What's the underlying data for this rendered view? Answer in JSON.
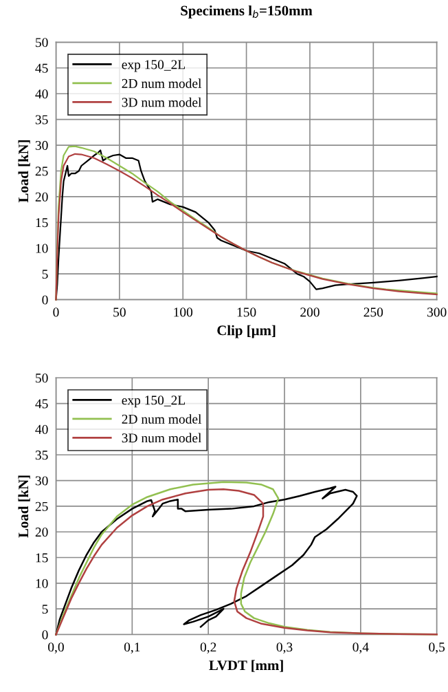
{
  "chart_data": [
    {
      "type": "line",
      "title": "Specimens l$_{b}$=150mm",
      "xlabel": "Clip [µm]",
      "ylabel": "Load [kN]",
      "xlim": [
        0,
        300
      ],
      "xticks": [
        0,
        50,
        100,
        150,
        200,
        250,
        300
      ],
      "ylim": [
        0,
        50
      ],
      "yticks": [
        0,
        5,
        10,
        15,
        20,
        25,
        30,
        35,
        40,
        45,
        50
      ],
      "grid": true,
      "legend": "top left",
      "marker": "none",
      "line_style": "solid",
      "series": [
        {
          "name": "exp 150_2L",
          "color": "#000000",
          "x": [
            0,
            1,
            2,
            3,
            4,
            5,
            6,
            8,
            9,
            10,
            12,
            15,
            18,
            20,
            25,
            30,
            33,
            35,
            37,
            40,
            45,
            50,
            55,
            60,
            65,
            67,
            70,
            75,
            76,
            80,
            85,
            90,
            100,
            105,
            110,
            115,
            120,
            125,
            127,
            130,
            140,
            150,
            160,
            165,
            170,
            180,
            185,
            190,
            195,
            200,
            205,
            210,
            220,
            230,
            250,
            270,
            290,
            300
          ],
          "values": [
            0,
            3,
            8,
            12,
            16,
            20,
            23,
            25,
            26,
            24,
            24.5,
            24.5,
            25,
            26,
            27,
            28,
            28.5,
            29,
            27,
            27.5,
            28,
            28.2,
            27.5,
            27.5,
            27,
            25,
            23,
            21,
            19,
            19.5,
            19,
            18.5,
            18,
            17.5,
            17,
            16,
            15,
            13.5,
            12,
            11.5,
            10.5,
            9.5,
            9,
            8.5,
            8,
            7,
            6,
            5,
            4.5,
            3.5,
            2,
            2.2,
            2.8,
            3,
            3.3,
            3.7,
            4.2,
            4.5
          ]
        },
        {
          "name": "2D num model",
          "color": "#92c050",
          "x": [
            0,
            1,
            2,
            4,
            6,
            10,
            15,
            20,
            30,
            40,
            50,
            60,
            70,
            80,
            90,
            100,
            110,
            120,
            130,
            140,
            150,
            160,
            170,
            180,
            190,
            200,
            210,
            220,
            230,
            240,
            250,
            260,
            270,
            280,
            290,
            300
          ],
          "values": [
            0,
            10,
            18,
            25,
            28,
            29.7,
            29.8,
            29.5,
            28.8,
            27.5,
            26,
            24.5,
            22.7,
            21,
            19,
            17.3,
            15.6,
            14,
            12.2,
            10.8,
            9.5,
            8.3,
            7.2,
            6.3,
            5.5,
            4.8,
            4.1,
            3.6,
            3.1,
            2.7,
            2.3,
            2,
            1.8,
            1.6,
            1.4,
            1.2
          ]
        },
        {
          "name": "3D num model",
          "color": "#b04040",
          "x": [
            0,
            1,
            2,
            4,
            6,
            10,
            15,
            20,
            30,
            40,
            50,
            60,
            70,
            80,
            90,
            100,
            110,
            120,
            130,
            140,
            150,
            160,
            170,
            180,
            190,
            200,
            210,
            220,
            230,
            240,
            250,
            260,
            270,
            280,
            290,
            300
          ],
          "values": [
            0,
            9,
            16,
            23,
            26,
            27.8,
            28.3,
            28.2,
            27.5,
            26.3,
            25,
            23.6,
            22,
            20.3,
            18.7,
            17,
            15.4,
            13.8,
            12.2,
            10.8,
            9.5,
            8.3,
            7.2,
            6.3,
            5.4,
            4.7,
            4.0,
            3.5,
            3,
            2.6,
            2.2,
            1.9,
            1.6,
            1.4,
            1.2,
            1.0
          ]
        }
      ]
    },
    {
      "type": "line",
      "xlabel": "LVDT [mm]",
      "ylabel": "Load [kN]",
      "xlim": [
        0,
        0.5
      ],
      "xticks": [
        {
          "value": 0,
          "label": "0,0"
        },
        {
          "value": 0.1,
          "label": "0,1"
        },
        {
          "value": 0.2,
          "label": "0,2"
        },
        {
          "value": 0.3,
          "label": "0,3"
        },
        {
          "value": 0.4,
          "label": "0,4"
        },
        {
          "value": 0.5,
          "label": "0,5"
        }
      ],
      "ylim": [
        0,
        50
      ],
      "yticks": [
        0,
        5,
        10,
        15,
        20,
        25,
        30,
        35,
        40,
        45,
        50
      ],
      "grid": true,
      "legend": "top left",
      "marker": "none",
      "line_style": "solid",
      "series": [
        {
          "name": "exp 150_2L",
          "color": "#000000",
          "x": [
            0,
            0.005,
            0.01,
            0.02,
            0.03,
            0.04,
            0.05,
            0.06,
            0.08,
            0.1,
            0.12,
            0.125,
            0.13,
            0.127,
            0.135,
            0.14,
            0.15,
            0.16,
            0.16,
            0.165,
            0.17,
            0.2,
            0.23,
            0.26,
            0.28,
            0.3,
            0.32,
            0.34,
            0.36,
            0.367,
            0.35,
            0.36,
            0.38,
            0.39,
            0.395,
            0.39,
            0.38,
            0.37,
            0.355,
            0.34,
            0.335,
            0.325,
            0.31,
            0.29,
            0.27,
            0.25,
            0.23,
            0.21,
            0.19,
            0.175,
            0.168,
            0.18,
            0.2,
            0.22,
            0.21,
            0.2,
            0.19
          ],
          "values": [
            0,
            3,
            5,
            9,
            12.5,
            15.5,
            18,
            20,
            22.5,
            24.5,
            26,
            26.2,
            24,
            23,
            24.5,
            25.5,
            26,
            26.3,
            24.5,
            24.5,
            24,
            24.3,
            24.5,
            25,
            25.8,
            26.3,
            27,
            27.8,
            28.5,
            28.8,
            26.5,
            27.5,
            28.2,
            27.8,
            27,
            25.5,
            24,
            22.5,
            20.5,
            19,
            17.5,
            15.5,
            13.5,
            11.5,
            9.5,
            7.5,
            6,
            4.8,
            3.8,
            2.8,
            2.0,
            2.5,
            3.5,
            5,
            3.5,
            2.8,
            1.5
          ]
        },
        {
          "name": "2D num model",
          "color": "#92c050",
          "x": [
            0,
            0.005,
            0.01,
            0.02,
            0.03,
            0.04,
            0.05,
            0.06,
            0.08,
            0.1,
            0.12,
            0.15,
            0.18,
            0.22,
            0.25,
            0.27,
            0.285,
            0.292,
            0.285,
            0.275,
            0.265,
            0.255,
            0.247,
            0.243,
            0.243,
            0.248,
            0.26,
            0.28,
            0.3,
            0.33,
            0.36,
            0.4,
            0.45,
            0.5
          ],
          "values": [
            0,
            2,
            4,
            7.5,
            11,
            14,
            17,
            19.5,
            23,
            25.3,
            26.8,
            28.3,
            29.2,
            29.7,
            29.6,
            29.2,
            28.3,
            26.5,
            23.5,
            20,
            17,
            14,
            11,
            8,
            6,
            4.5,
            3.2,
            2.2,
            1.5,
            0.9,
            0.5,
            0.25,
            0.1,
            0.05
          ]
        },
        {
          "name": "3D num model",
          "color": "#b04040",
          "x": [
            0,
            0.01,
            0.02,
            0.03,
            0.04,
            0.05,
            0.06,
            0.08,
            0.1,
            0.12,
            0.14,
            0.17,
            0.2,
            0.22,
            0.24,
            0.26,
            0.272,
            0.272,
            0.265,
            0.255,
            0.245,
            0.237,
            0.234,
            0.238,
            0.25,
            0.27,
            0.3,
            0.33,
            0.36,
            0.4,
            0.45,
            0.5
          ],
          "values": [
            0,
            3.5,
            7,
            10,
            12.8,
            15.3,
            17.5,
            20.8,
            23.2,
            25,
            26.3,
            27.5,
            28.2,
            28.3,
            28,
            27.2,
            25.5,
            23,
            20,
            16,
            12.5,
            9,
            6.5,
            4.5,
            3.2,
            2.1,
            1.3,
            0.8,
            0.45,
            0.25,
            0.1,
            0.05
          ]
        }
      ]
    }
  ]
}
